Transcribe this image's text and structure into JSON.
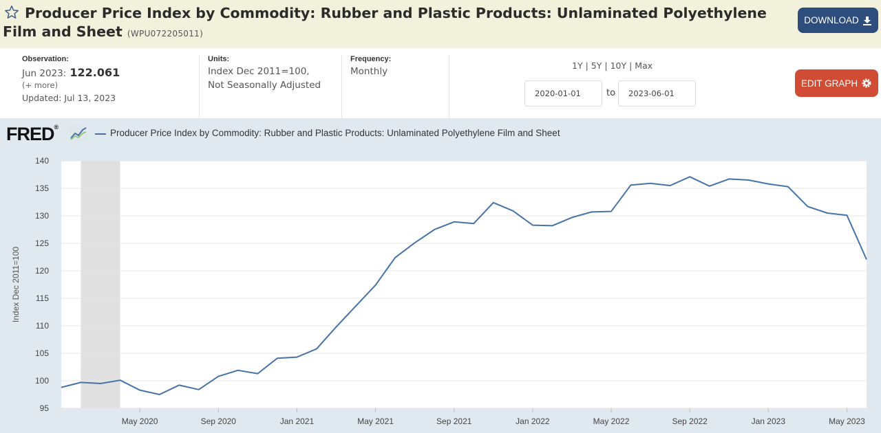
{
  "header": {
    "title": "Producer Price Index by Commodity: Rubber and Plastic Products: Unlaminated Polyethylene Film and Sheet",
    "series_id": "(WPU072205011)",
    "download_label": "DOWNLOAD"
  },
  "info": {
    "observation_label": "Observation:",
    "observation_date": "Jun 2023:",
    "observation_value": "122.061",
    "more": "(+ more)",
    "updated": "Updated: Jul 13, 2023",
    "units_label": "Units:",
    "units_line1": "Index Dec 2011=100,",
    "units_line2": "Not Seasonally Adjusted",
    "frequency_label": "Frequency:",
    "frequency_value": "Monthly",
    "range_1y": "1Y",
    "range_5y": "5Y",
    "range_10y": "10Y",
    "range_max": "Max",
    "range_sep": "|",
    "start_date": "2020-01-01",
    "to_label": "to",
    "end_date": "2023-06-01",
    "edit_label": "EDIT GRAPH"
  },
  "graph": {
    "logo_text": "FRED",
    "logo_mark": "®",
    "legend_label": "Producer Price Index by Commodity: Rubber and Plastic Products: Unlaminated Polyethylene Film and Sheet"
  },
  "colors": {
    "series": "#4572a7",
    "recession": "#e0e0e0",
    "download_bg": "#2d4d7c",
    "edit_bg": "#d14c34",
    "header_bg": "#f2f2dc",
    "graph_bg": "#e1e9f0"
  },
  "chart_data": {
    "type": "line",
    "ylabel": "Index Dec 2011=100",
    "ylim": [
      95,
      140
    ],
    "y_ticks": [
      95,
      100,
      105,
      110,
      115,
      120,
      125,
      130,
      135,
      140
    ],
    "x_ticks": [
      "May 2020",
      "Sep 2020",
      "Jan 2021",
      "May 2021",
      "Sep 2021",
      "Jan 2022",
      "May 2022",
      "Sep 2022",
      "Jan 2023",
      "May 2023"
    ],
    "x_tick_months": [
      4,
      8,
      12,
      16,
      20,
      24,
      28,
      32,
      36,
      40
    ],
    "recession": {
      "start": "Feb 2020",
      "end": "Apr 2020",
      "start_month": 1,
      "end_month": 3
    },
    "grid": true,
    "series": [
      {
        "x": [
          "2020-01",
          "2020-02",
          "2020-03",
          "2020-04",
          "2020-05",
          "2020-06",
          "2020-07",
          "2020-08",
          "2020-09",
          "2020-10",
          "2020-11",
          "2020-12",
          "2021-01",
          "2021-02",
          "2021-03",
          "2021-04",
          "2021-05",
          "2021-06",
          "2021-07",
          "2021-08",
          "2021-09",
          "2021-10",
          "2021-11",
          "2021-12",
          "2022-01",
          "2022-02",
          "2022-03",
          "2022-04",
          "2022-05",
          "2022-06",
          "2022-07",
          "2022-08",
          "2022-09",
          "2022-10",
          "2022-11",
          "2022-12",
          "2023-01",
          "2023-02",
          "2023-03",
          "2023-04",
          "2023-05",
          "2023-06"
        ],
        "values": [
          98.8,
          99.7,
          99.5,
          100.1,
          98.3,
          97.5,
          99.2,
          98.4,
          100.8,
          101.9,
          101.3,
          104.1,
          104.3,
          105.8,
          109.8,
          113.6,
          117.4,
          122.4,
          125.1,
          127.5,
          128.9,
          128.6,
          132.4,
          130.9,
          128.3,
          128.2,
          129.7,
          130.7,
          130.8,
          135.6,
          135.9,
          135.5,
          137.1,
          135.4,
          136.7,
          136.5,
          135.8,
          135.3,
          131.7,
          130.5,
          130.1,
          122.061
        ]
      }
    ]
  }
}
